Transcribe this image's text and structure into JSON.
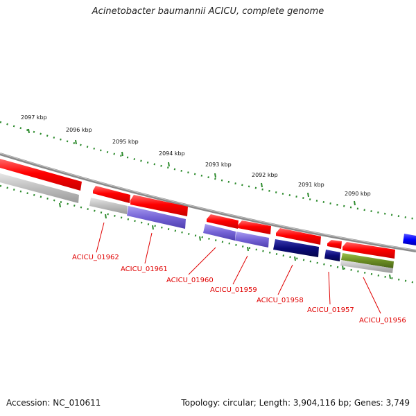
{
  "title": "Acinetobacter baumannii ACICU, complete genome",
  "footer": {
    "accession": "Accession: NC_010611",
    "summary": "Topology: circular; Length: 3,904,116 bp; Genes: 3,749"
  },
  "colors": {
    "forward_gene": "#ff0000",
    "reverse_gene": "#ff0000",
    "grey_feature": "#b4b4b4",
    "purple_feature": "#7b68d8",
    "navy_feature": "#0a0a78",
    "olive_feature": "#6b8e23",
    "blue_feature": "#0000ff",
    "ruler": "#2b8a2b",
    "backbone": "#808080",
    "label": "#e00000"
  },
  "scale_labels": [
    "2097 kbp",
    "2096 kbp",
    "2095 kbp",
    "2094 kbp",
    "2093 kbp",
    "2092 kbp",
    "2091 kbp",
    "2090 kbp"
  ],
  "genes": [
    {
      "label": "ACICU_01962"
    },
    {
      "label": "ACICU_01961"
    },
    {
      "label": "ACICU_01960"
    },
    {
      "label": "ACICU_01959"
    },
    {
      "label": "ACICU_01958"
    },
    {
      "label": "ACICU_01957"
    },
    {
      "label": "ACICU_01956"
    }
  ]
}
